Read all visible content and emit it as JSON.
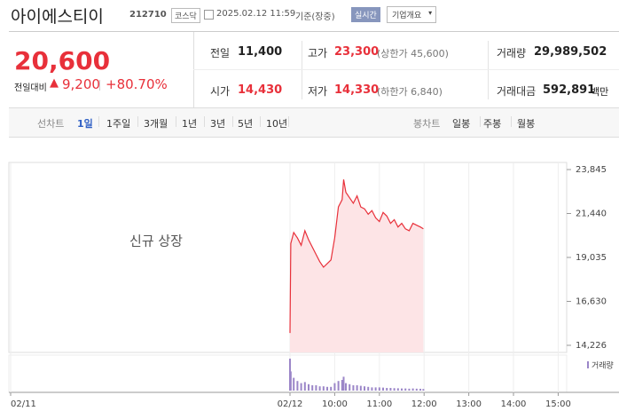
{
  "header": {
    "name": "아이에스티이",
    "code": "212710",
    "market": "코스닥",
    "datetime": "2025.02.12 11:59",
    "basis": "기준(장중)",
    "realtime": "실시간",
    "company_button": "기업개요"
  },
  "quote": {
    "price": "20,600",
    "change_label": "전일대비",
    "change": "9,200",
    "change_pct": "+80.70%"
  },
  "stats": [
    {
      "label": "전일",
      "value": "11,400"
    },
    {
      "label": "고가",
      "value": "23,300",
      "note": "(상한가 45,600)"
    },
    {
      "label": "거래량",
      "value": "29,989,502"
    },
    {
      "label": "시가",
      "value": "14,430"
    },
    {
      "label": "저가",
      "value": "14,330",
      "note": "(하한가 6,840)"
    },
    {
      "label": "거래대금",
      "value": "592,891",
      "unit": "백만"
    }
  ],
  "tabs": {
    "line_label": "선차트",
    "line": [
      "1일",
      "1주일",
      "3개월",
      "1년",
      "3년",
      "5년",
      "10년"
    ],
    "candle_label": "봉차트",
    "candle": [
      "일봉",
      "주봉",
      "월봉"
    ]
  },
  "chart_data": {
    "type": "line",
    "annotation": "신규 상장",
    "x": [
      0,
      1,
      5,
      10,
      15,
      20,
      25,
      30,
      35,
      40,
      45,
      50,
      55,
      60,
      65,
      70,
      72,
      75,
      80,
      85,
      90,
      95,
      100,
      105,
      110,
      115,
      120,
      125,
      130,
      135,
      140,
      145,
      150,
      155,
      160,
      165,
      170,
      175,
      179
    ],
    "series": [
      {
        "color": "#e8303a",
        "fill": "#fde4e6",
        "values": [
          14900,
          19800,
          20400,
          20100,
          19700,
          20500,
          20000,
          19600,
          19200,
          18800,
          18500,
          18700,
          18900,
          20100,
          21800,
          22200,
          23300,
          22600,
          22300,
          22000,
          22400,
          21800,
          21700,
          21400,
          21600,
          21200,
          21000,
          21500,
          21300,
          20900,
          21100,
          20700,
          20900,
          20600,
          20500,
          20900,
          20800,
          20700,
          20600
        ]
      },
      {
        "name": "거래량",
        "color": "#9b86c8",
        "axis": "y2",
        "values": [
          3000000,
          1800000,
          1200000,
          900000,
          700000,
          800000,
          600000,
          500000,
          500000,
          400000,
          400000,
          350000,
          350000,
          700000,
          900000,
          1000000,
          1300000,
          700000,
          600000,
          500000,
          500000,
          450000,
          400000,
          350000,
          300000,
          300000,
          300000,
          280000,
          250000,
          250000,
          230000,
          220000,
          200000,
          200000,
          180000,
          200000,
          180000,
          170000,
          150000
        ]
      }
    ],
    "xlim": [
      -375,
      372
    ],
    "xticks": [
      {
        "value": -375,
        "label": "02/11"
      },
      {
        "value": 0,
        "label": "02/12"
      },
      {
        "value": 60,
        "label": "10:00"
      },
      {
        "value": 120,
        "label": "11:00"
      },
      {
        "value": 180,
        "label": "12:00"
      },
      {
        "value": 240,
        "label": "13:00"
      },
      {
        "value": 300,
        "label": "14:00"
      },
      {
        "value": 360,
        "label": "15:00"
      }
    ],
    "ylim": [
      13837,
      24234
    ],
    "yticks": [
      {
        "value": 14226,
        "label": "14,226"
      },
      {
        "value": 16630,
        "label": "16,630"
      },
      {
        "value": 19035,
        "label": "19,035"
      },
      {
        "value": 21440,
        "label": "21,440"
      },
      {
        "value": 23845,
        "label": "23,845"
      }
    ],
    "y2lim": [
      0,
      3000000
    ],
    "grid": true
  }
}
